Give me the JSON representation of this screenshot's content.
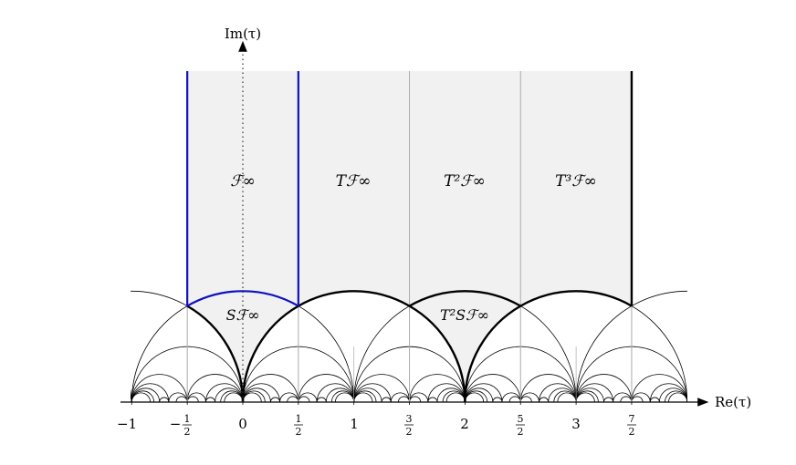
{
  "axes": {
    "x_label": "Re(τ)",
    "y_label": "Im(τ)"
  },
  "region_labels": {
    "F_inf": "ℱ∞",
    "T_F_inf": "Tℱ∞",
    "T2_F_inf": "T²ℱ∞",
    "T3_F_inf": "T³ℱ∞",
    "S_F_inf": "Sℱ∞",
    "T2_S_F_inf": "T²Sℱ∞"
  },
  "tick_labels": {
    "m1": "−1",
    "m_half_sign": "−",
    "half_num": "1",
    "half_den": "2",
    "zero": "0",
    "one": "1",
    "three_half_num": "3",
    "five_half_num": "5",
    "two": "2",
    "three": "3",
    "seven_half_num": "7"
  },
  "colors": {
    "fundamental_domain": "#1010c0",
    "shade": "#f1f1f1",
    "thin_line": "#000000",
    "grid_line": "#aaaaaa"
  }
}
